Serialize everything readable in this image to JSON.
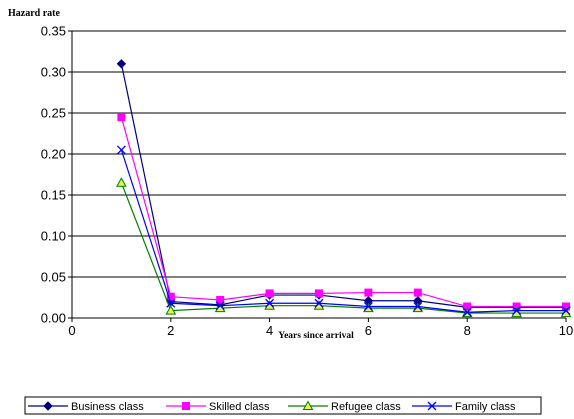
{
  "chart_data": {
    "type": "line",
    "ylabel": "Hazard rate",
    "xlabel": "Years since arrival",
    "xlim": [
      0,
      10
    ],
    "ylim": [
      0,
      0.35
    ],
    "xticks": [
      "0",
      "2",
      "4",
      "6",
      "8",
      "10"
    ],
    "yticks": [
      "0.00",
      "0.05",
      "0.10",
      "0.15",
      "0.20",
      "0.25",
      "0.30",
      "0.35"
    ],
    "grid": "horizontal",
    "legend_position": "bottom",
    "series": [
      {
        "name": "Business class",
        "color": "#000080",
        "marker": "diamond",
        "x": [
          1,
          2,
          3,
          4,
          5,
          6,
          7,
          8,
          9,
          10
        ],
        "values": [
          0.31,
          0.02,
          0.016,
          0.028,
          0.028,
          0.021,
          0.021,
          0.013,
          0.013,
          0.013
        ]
      },
      {
        "name": "Skilled class",
        "color": "#ff00ff",
        "marker": "square",
        "x": [
          1,
          2,
          3,
          4,
          5,
          6,
          7,
          8,
          9,
          10
        ],
        "values": [
          0.245,
          0.026,
          0.022,
          0.03,
          0.03,
          0.031,
          0.031,
          0.014,
          0.014,
          0.014
        ]
      },
      {
        "name": "Refugee class",
        "color": "#008000",
        "fill": "#e6f24d",
        "marker": "triangle",
        "x": [
          1,
          2,
          3,
          4,
          5,
          6,
          7,
          8,
          9,
          10
        ],
        "values": [
          0.165,
          0.009,
          0.012,
          0.015,
          0.015,
          0.012,
          0.012,
          0.006,
          0.006,
          0.006
        ]
      },
      {
        "name": "Family class",
        "color": "#0000ff",
        "marker": "x",
        "x": [
          1,
          2,
          3,
          4,
          5,
          6,
          7,
          8,
          9,
          10
        ],
        "values": [
          0.205,
          0.018,
          0.015,
          0.018,
          0.018,
          0.014,
          0.014,
          0.007,
          0.009,
          0.009
        ]
      }
    ]
  }
}
